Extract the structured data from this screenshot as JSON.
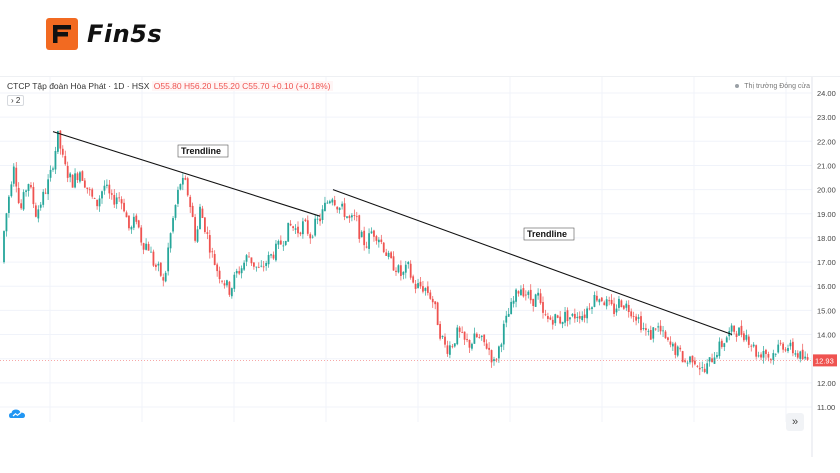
{
  "brand": {
    "name": "Fin5s",
    "mark_color": "#f26a21",
    "mark_icon": "fin5s-logo-icon"
  },
  "chart_header": {
    "symbol_title": "CTCP Tập đoàn Hòa Phát · 1D · HSX",
    "ohlc": "O55.80  H56.20  L55.20  C55.70  +0.10 (+0.18%)",
    "legend_toggle": "› 2",
    "market_status": "Thị trường Đóng cửa",
    "goto_realtime_icon": "double-chevron-right-icon",
    "logo_icon": "tradingview-cloud-icon"
  },
  "chart_data": {
    "type": "candlestick",
    "title": "CTCP Tập đoàn Hòa Phát · 1D · HSX",
    "ylim": [
      10.5,
      24.4
    ],
    "y_ticks": [
      "11.00",
      "12.00",
      "13.00",
      "14.00",
      "15.00",
      "16.00",
      "17.00",
      "18.00",
      "19.00",
      "20.00",
      "21.00",
      "22.00",
      "23.00",
      "24.00"
    ],
    "last_price": "12.93",
    "grid": true,
    "colors": {
      "up": "#26a69a",
      "down": "#ef5350",
      "trendline": "#111111"
    },
    "path_anchors": [
      [
        0,
        17.0
      ],
      [
        8,
        19.5
      ],
      [
        14,
        21.2
      ],
      [
        20,
        19.0
      ],
      [
        28,
        20.4
      ],
      [
        36,
        19.0
      ],
      [
        44,
        19.8
      ],
      [
        50,
        20.5
      ],
      [
        58,
        22.2
      ],
      [
        64,
        21.0
      ],
      [
        72,
        20.3
      ],
      [
        80,
        20.8
      ],
      [
        88,
        20.0
      ],
      [
        96,
        19.3
      ],
      [
        104,
        20.2
      ],
      [
        112,
        19.5
      ],
      [
        118,
        19.8
      ],
      [
        124,
        19.3
      ],
      [
        130,
        18.2
      ],
      [
        136,
        18.9
      ],
      [
        142,
        17.8
      ],
      [
        148,
        17.7
      ],
      [
        154,
        16.9
      ],
      [
        160,
        16.6
      ],
      [
        164,
        16.0
      ],
      [
        168,
        17.5
      ],
      [
        174,
        19.0
      ],
      [
        180,
        20.3
      ],
      [
        186,
        20.2
      ],
      [
        192,
        19.0
      ],
      [
        196,
        17.8
      ],
      [
        200,
        19.2
      ],
      [
        206,
        18.3
      ],
      [
        212,
        17.3
      ],
      [
        218,
        16.6
      ],
      [
        224,
        16.2
      ],
      [
        230,
        15.8
      ],
      [
        236,
        16.5
      ],
      [
        242,
        16.8
      ],
      [
        248,
        17.3
      ],
      [
        254,
        16.9
      ],
      [
        260,
        16.6
      ],
      [
        266,
        17.0
      ],
      [
        272,
        17.3
      ],
      [
        278,
        17.6
      ],
      [
        284,
        18.0
      ],
      [
        290,
        18.5
      ],
      [
        298,
        18.3
      ],
      [
        304,
        18.6
      ],
      [
        310,
        18.1
      ],
      [
        316,
        18.6
      ],
      [
        320,
        18.8
      ],
      [
        326,
        19.4
      ],
      [
        332,
        19.8
      ],
      [
        338,
        19.3
      ],
      [
        344,
        19.1
      ],
      [
        350,
        18.7
      ],
      [
        356,
        18.8
      ],
      [
        360,
        18.1
      ],
      [
        366,
        17.7
      ],
      [
        372,
        18.3
      ],
      [
        378,
        18.1
      ],
      [
        384,
        17.6
      ],
      [
        390,
        17.0
      ],
      [
        396,
        16.8
      ],
      [
        402,
        16.4
      ],
      [
        408,
        16.8
      ],
      [
        414,
        16.0
      ],
      [
        420,
        16.0
      ],
      [
        426,
        15.9
      ],
      [
        432,
        15.5
      ],
      [
        436,
        14.9
      ],
      [
        440,
        14.1
      ],
      [
        446,
        13.4
      ],
      [
        452,
        13.6
      ],
      [
        458,
        14.1
      ],
      [
        464,
        13.7
      ],
      [
        470,
        13.6
      ],
      [
        476,
        13.9
      ],
      [
        482,
        13.7
      ],
      [
        488,
        13.5
      ],
      [
        494,
        12.8
      ],
      [
        498,
        13.3
      ],
      [
        504,
        14.3
      ],
      [
        510,
        15.0
      ],
      [
        516,
        15.6
      ],
      [
        520,
        16.0
      ],
      [
        526,
        15.7
      ],
      [
        532,
        15.4
      ],
      [
        538,
        15.6
      ],
      [
        542,
        14.8
      ],
      [
        548,
        14.6
      ],
      [
        554,
        14.7
      ],
      [
        560,
        14.6
      ],
      [
        566,
        14.8
      ],
      [
        572,
        14.7
      ],
      [
        578,
        14.9
      ],
      [
        584,
        14.8
      ],
      [
        590,
        15.3
      ],
      [
        596,
        15.6
      ],
      [
        602,
        15.5
      ],
      [
        608,
        15.2
      ],
      [
        614,
        15.0
      ],
      [
        620,
        15.4
      ],
      [
        626,
        15.2
      ],
      [
        632,
        15.0
      ],
      [
        638,
        14.7
      ],
      [
        644,
        14.2
      ],
      [
        650,
        13.9
      ],
      [
        656,
        14.4
      ],
      [
        662,
        14.0
      ],
      [
        668,
        13.6
      ],
      [
        674,
        13.4
      ],
      [
        680,
        13.2
      ],
      [
        686,
        12.8
      ],
      [
        692,
        13.1
      ],
      [
        698,
        12.8
      ],
      [
        704,
        12.4
      ],
      [
        710,
        12.9
      ],
      [
        716,
        13.3
      ],
      [
        722,
        13.6
      ],
      [
        728,
        14.0
      ],
      [
        734,
        14.2
      ],
      [
        740,
        14.1
      ],
      [
        746,
        14.0
      ],
      [
        752,
        13.6
      ],
      [
        758,
        13.1
      ],
      [
        764,
        13.4
      ],
      [
        770,
        13.0
      ],
      [
        776,
        13.4
      ],
      [
        782,
        13.6
      ],
      [
        788,
        13.5
      ],
      [
        794,
        13.3
      ],
      [
        800,
        13.1
      ],
      [
        806,
        12.9
      ],
      [
        810,
        13.0
      ]
    ],
    "trendlines": [
      {
        "label": "Trendline",
        "from": [
          53,
          22.4
        ],
        "to": [
          320,
          18.9
        ]
      },
      {
        "label": "Trendline",
        "from": [
          333,
          20.0
        ],
        "to": [
          732,
          14.0
        ]
      }
    ]
  }
}
